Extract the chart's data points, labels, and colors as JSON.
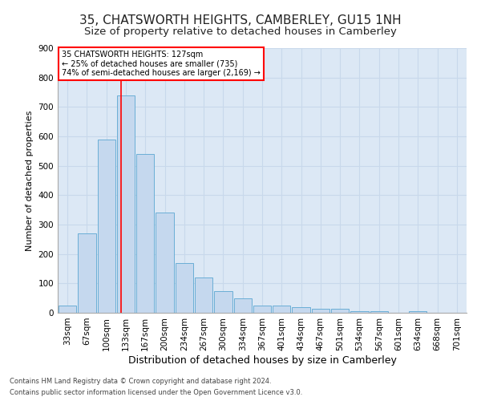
{
  "title": "35, CHATSWORTH HEIGHTS, CAMBERLEY, GU15 1NH",
  "subtitle": "Size of property relative to detached houses in Camberley",
  "xlabel": "Distribution of detached houses by size in Camberley",
  "ylabel": "Number of detached properties",
  "footer1": "Contains HM Land Registry data © Crown copyright and database right 2024.",
  "footer2": "Contains public sector information licensed under the Open Government Licence v3.0.",
  "bin_labels": [
    "33sqm",
    "67sqm",
    "100sqm",
    "133sqm",
    "167sqm",
    "200sqm",
    "234sqm",
    "267sqm",
    "300sqm",
    "334sqm",
    "367sqm",
    "401sqm",
    "434sqm",
    "467sqm",
    "501sqm",
    "534sqm",
    "567sqm",
    "601sqm",
    "634sqm",
    "668sqm",
    "701sqm"
  ],
  "bar_values": [
    25,
    270,
    590,
    740,
    540,
    340,
    170,
    120,
    75,
    50,
    25,
    25,
    20,
    15,
    15,
    5,
    5,
    0,
    5,
    0,
    0
  ],
  "bar_color": "#c5d8ee",
  "bar_edgecolor": "#6aaed6",
  "grid_color": "#c8d8eb",
  "background_color": "#dce8f5",
  "ylim": [
    0,
    900
  ],
  "yticks": [
    0,
    100,
    200,
    300,
    400,
    500,
    600,
    700,
    800,
    900
  ],
  "red_line_x": 2.75,
  "annotation_line1": "35 CHATSWORTH HEIGHTS: 127sqm",
  "annotation_line2": "← 25% of detached houses are smaller (735)",
  "annotation_line3": "74% of semi-detached houses are larger (2,169) →",
  "title_fontsize": 11,
  "subtitle_fontsize": 9.5,
  "tick_fontsize": 7.5,
  "ylabel_fontsize": 8,
  "xlabel_fontsize": 9
}
